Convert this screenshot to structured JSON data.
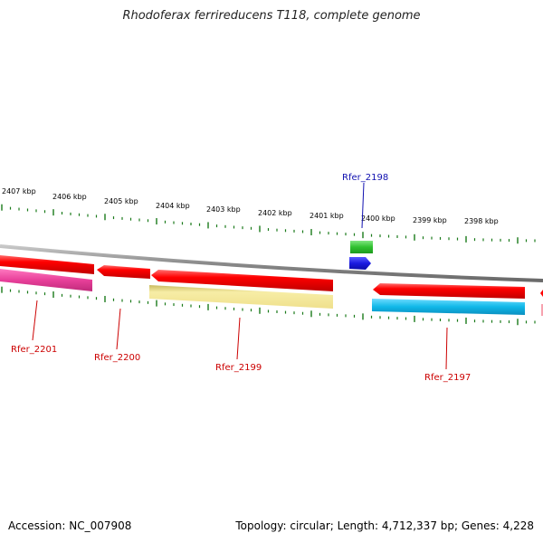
{
  "title": "Rhodoferax ferrireducens T118, complete genome",
  "accession": "Accession: NC_007908",
  "summary": "Topology: circular; Length: 4,712,337 bp; Genes: 4,228",
  "colors": {
    "backbone": "#8a8a8a",
    "tick": "#1a7a1a",
    "forward_label": "#1010b0",
    "reverse_label": "#cc0000"
  },
  "scale_labels": [
    "2407 kbp",
    "2406 kbp",
    "2405 kbp",
    "2404 kbp",
    "2403 kbp",
    "2402 kbp",
    "2401 kbp",
    "2400 kbp",
    "2399 kbp",
    "2398 kbp"
  ],
  "genes": [
    {
      "name": "Rfer_2201",
      "strand": "reverse",
      "color": "#ff0000",
      "feature_color": "#e8409a"
    },
    {
      "name": "Rfer_2200",
      "strand": "reverse",
      "color": "#ff0000",
      "feature_color": null
    },
    {
      "name": "Rfer_2199",
      "strand": "reverse",
      "color": "#ff0000",
      "feature_color": "#f2e79a"
    },
    {
      "name": "Rfer_2198",
      "strand": "forward",
      "color": "#1a1ae0",
      "feature_color": "#2fc12f"
    },
    {
      "name": "Rfer_2197",
      "strand": "reverse",
      "color": "#ff0000",
      "feature_color": "#10b8e8"
    }
  ]
}
